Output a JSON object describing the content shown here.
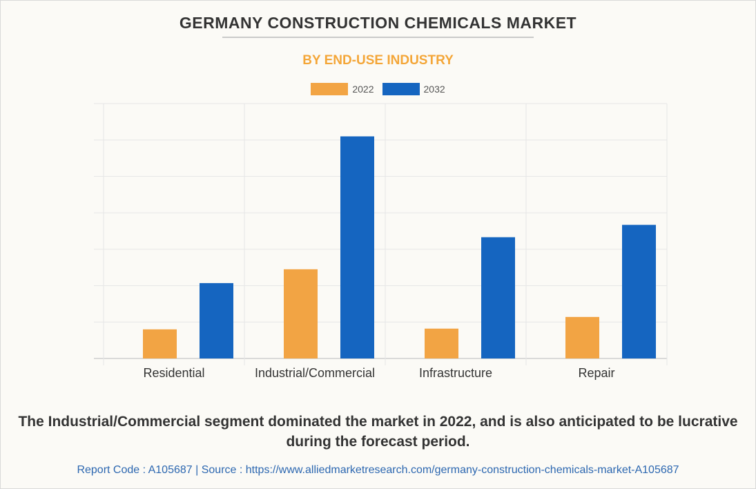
{
  "header": {
    "title": "GERMANY CONSTRUCTION CHEMICALS MARKET",
    "subtitle": "BY END-USE INDUSTRY"
  },
  "legend": [
    {
      "label": "2022",
      "color": "#f2a444"
    },
    {
      "label": "2032",
      "color": "#1565c0"
    }
  ],
  "chart_data": {
    "type": "bar",
    "categories": [
      "Residential",
      "Industrial/Commercial",
      "Infrastructure",
      "Repair"
    ],
    "series": [
      {
        "name": "2022",
        "values": [
          0.8,
          2.45,
          0.82,
          1.14
        ]
      },
      {
        "name": "2032",
        "values": [
          2.07,
          6.1,
          3.33,
          3.67
        ]
      }
    ],
    "title": "GERMANY CONSTRUCTION CHEMICALS MARKET",
    "subtitle": "BY END-USE INDUSTRY",
    "xlabel": "",
    "ylabel": "",
    "ylim": [
      0,
      7
    ],
    "grid": true,
    "legend_position": "top-center"
  },
  "caption": "The Industrial/Commercial segment dominated the market in 2022, and is also anticipated to be lucrative during the forecast period.",
  "footer": "Report Code : A105687  |  Source : https://www.alliedmarketresearch.com/germany-construction-chemicals-market-A105687"
}
